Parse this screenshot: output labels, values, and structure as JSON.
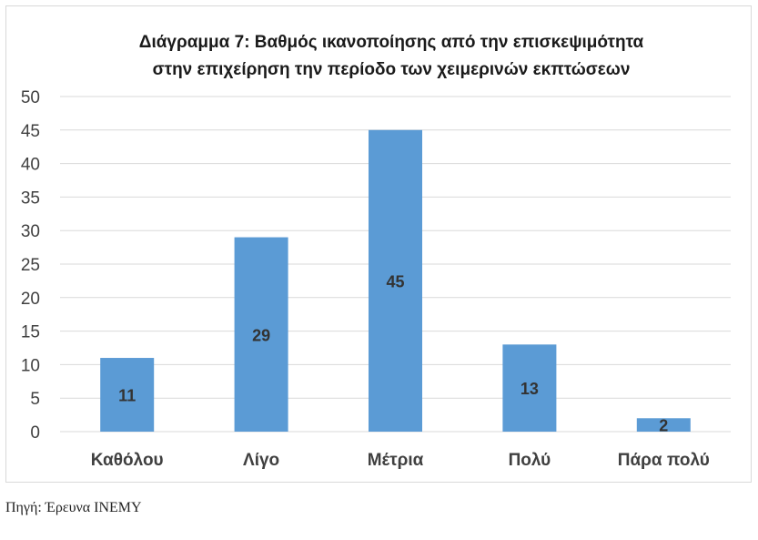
{
  "chart_data": {
    "type": "bar",
    "title_lines": [
      "Διάγραμμα 7: Βαθμός ικανοποίησης από την επισκεψιμότητα",
      "στην επιχείρηση την περίοδο των χειμερινών εκπτώσεων"
    ],
    "categories": [
      "Καθόλου",
      "Λίγο",
      "Μέτρια",
      "Πολύ",
      "Πάρα πολύ"
    ],
    "values": [
      11,
      29,
      45,
      13,
      2
    ],
    "data_labels": [
      "11",
      "29",
      "45",
      "13",
      "2"
    ],
    "ylim": [
      0,
      50
    ],
    "yticks": [
      "0",
      "5",
      "10",
      "15",
      "20",
      "25",
      "30",
      "35",
      "40",
      "45",
      "50"
    ],
    "grid": true,
    "bar_color": "#5b9bd5",
    "gridline_color": "#d9d9d9",
    "xlabel": "",
    "ylabel": ""
  },
  "source_note": "Πηγή: Έρευνα ΙΝΕΜΥ"
}
